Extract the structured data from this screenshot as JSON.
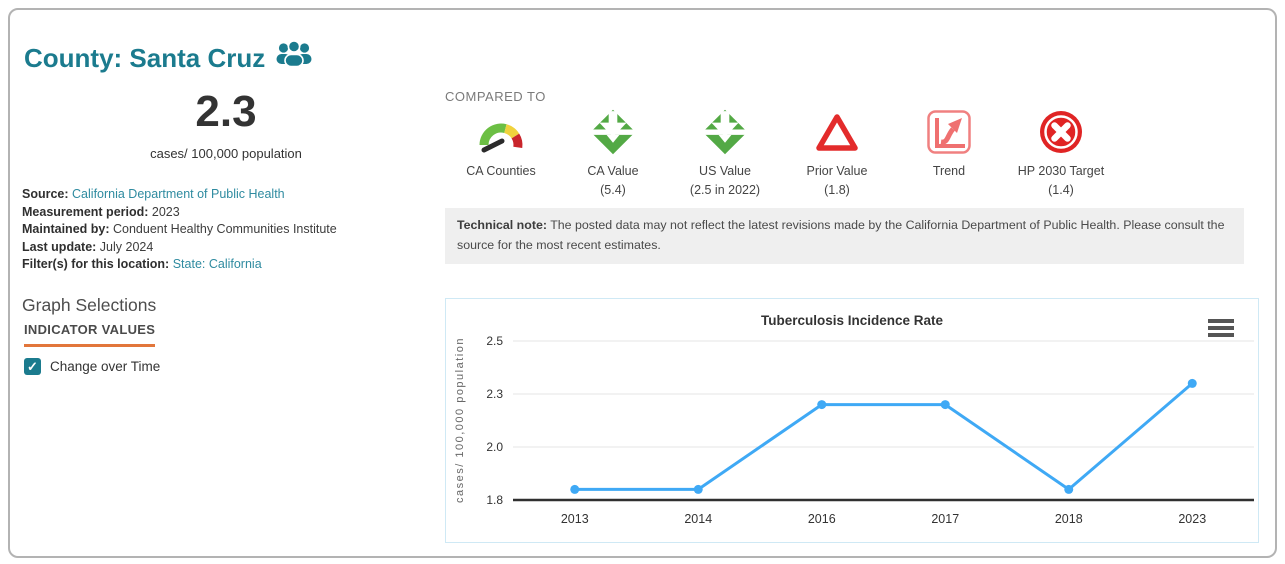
{
  "colors": {
    "teal_brand": "#1b7b8e",
    "link": "#2f8ba0",
    "accent_orange": "#e2763b",
    "good_green": "#53a945",
    "bad_red": "#e02424",
    "chart_line": "#3fa9f5"
  },
  "header": {
    "title": "County: Santa Cruz",
    "icon": "users-icon"
  },
  "summary": {
    "value": "2.3",
    "unit": "cases/ 100,000 population"
  },
  "meta": {
    "rows": [
      {
        "label": "Source:",
        "value": "California Department of Public Health"
      },
      {
        "label": "Measurement period:",
        "value": "2023"
      },
      {
        "label": "Maintained by:",
        "value": "Conduent Healthy Communities Institute"
      },
      {
        "label": "Last update:",
        "value": "July 2024"
      },
      {
        "label": "Filter(s) for this location:",
        "value": "State: California"
      }
    ]
  },
  "graph_selections": {
    "heading": "Graph Selections",
    "tab_label": "INDICATOR VALUES",
    "checkbox_label": "Change over Time",
    "checkbox_checked": true
  },
  "compared_to": {
    "heading": "COMPARED TO",
    "items": [
      {
        "icon": "gauge-icon",
        "label": "CA Counties",
        "value": ""
      },
      {
        "icon": "double-arrow-down-icon",
        "label": "CA Value",
        "value": "(5.4)"
      },
      {
        "icon": "double-arrow-down-icon",
        "label": "US Value",
        "value": "(2.5 in 2022)"
      },
      {
        "icon": "warning-triangle-icon",
        "label": "Prior Value",
        "value": "(1.8)"
      },
      {
        "icon": "trend-chart-icon",
        "label": "Trend",
        "value": ""
      },
      {
        "icon": "circle-x-icon",
        "label": "HP 2030 Target",
        "value": "(1.4)"
      }
    ]
  },
  "technical_note": {
    "label": "Technical note:",
    "text": "The posted data may not reflect the latest revisions made by the California Department of Public Health. Please consult the source for the most recent estimates."
  },
  "chart_data": {
    "type": "line",
    "title": "Tuberculosis Incidence Rate",
    "ylabel": "cases/ 100,000 population",
    "xlabel": "",
    "categories": [
      "2013",
      "2014",
      "2016",
      "2017",
      "2018",
      "2023"
    ],
    "values": [
      1.8,
      1.8,
      2.2,
      2.2,
      1.8,
      2.3
    ],
    "ytick_labels": [
      "1.8",
      "2.0",
      "2.3",
      "2.5"
    ],
    "ylim": [
      1.75,
      2.5
    ],
    "grid": true,
    "legend": false,
    "line_color": "#3fa9f5",
    "menu_icon": "hamburger-icon"
  }
}
